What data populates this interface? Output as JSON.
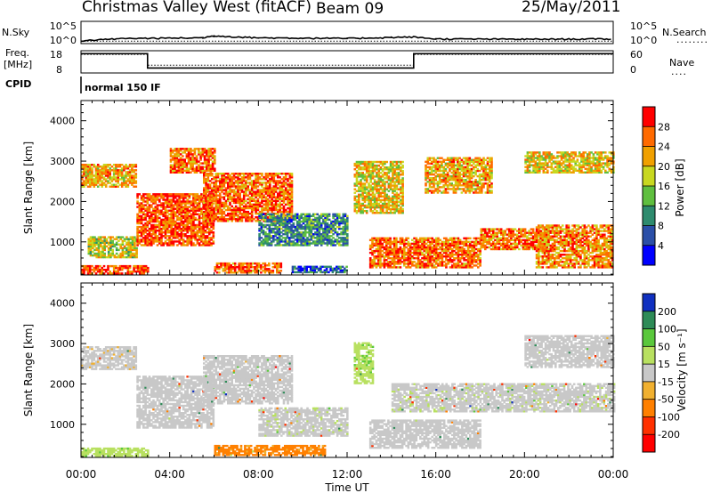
{
  "header": {
    "station": "Christmas Valley West (fitACF)",
    "beam": "Beam 09",
    "date": "25/May/2011"
  },
  "strips": {
    "noise": {
      "left_label": "N.Sky",
      "left_ticks": [
        "10^5",
        "10^0"
      ],
      "right_ticks": [
        "10^5",
        "10^0"
      ],
      "right_label": "N.Search",
      "right_legend": "........"
    },
    "freq": {
      "left_label_1": "Freq.",
      "left_label_2": "[MHz]",
      "left_ticks": [
        "18",
        "8"
      ],
      "right_ticks": [
        "60",
        "0"
      ],
      "right_label": "Nave",
      "right_legend": "...."
    },
    "cpid": {
      "label": "CPID",
      "value": "normal 150 IF"
    }
  },
  "axes": {
    "ylabel": "Slant Range [km]",
    "xlabel": "Time UT",
    "x_ticks": [
      "00:00",
      "04:00",
      "08:00",
      "12:00",
      "16:00",
      "20:00",
      "00:00"
    ],
    "y_ticks": [
      "1000",
      "2000",
      "3000",
      "4000"
    ]
  },
  "colorbars": {
    "power": {
      "label": "Power [dB]",
      "ticks": [
        "4",
        "8",
        "12",
        "16",
        "20",
        "24",
        "28"
      ],
      "colors": [
        "#0000ff",
        "#2b4fa8",
        "#2e8b6e",
        "#5fbf3f",
        "#c8d820",
        "#f0a000",
        "#ff6a00",
        "#ff0000"
      ]
    },
    "velocity": {
      "label": "Velocity [m s⁻¹]",
      "ticks": [
        "200",
        "100",
        "50",
        "15",
        "-15",
        "-50",
        "-100",
        "-200"
      ],
      "colors": [
        "#1030c0",
        "#2e8b57",
        "#5ac83c",
        "#b8e060",
        "#c8c8c8",
        "#f0b030",
        "#ff8000",
        "#ff3000",
        "#ff0000"
      ]
    }
  },
  "chart_data": [
    {
      "type": "heatmap",
      "title": "",
      "quantity": "Power",
      "xlabel": "Time UT",
      "ylabel": "Slant Range [km]",
      "xlim": [
        0,
        24
      ],
      "ylim": [
        180,
        4500
      ],
      "colorbar_range": [
        0,
        32
      ],
      "units": "dB",
      "echo_regions": [
        {
          "t0": 0.0,
          "t1": 2.5,
          "r0": 2350,
          "r1": 2900,
          "value": 22
        },
        {
          "t0": 0.0,
          "t1": 3.0,
          "r0": 200,
          "r1": 420,
          "value": 28
        },
        {
          "t0": 0.3,
          "t1": 2.5,
          "r0": 600,
          "r1": 1100,
          "value": 18
        },
        {
          "t0": 2.5,
          "t1": 6.0,
          "r0": 900,
          "r1": 2200,
          "value": 27
        },
        {
          "t0": 4.0,
          "t1": 6.0,
          "r0": 2700,
          "r1": 3300,
          "value": 26
        },
        {
          "t0": 5.5,
          "t1": 9.5,
          "r0": 1500,
          "r1": 2700,
          "value": 26
        },
        {
          "t0": 6.0,
          "t1": 9.0,
          "r0": 220,
          "r1": 480,
          "value": 26
        },
        {
          "t0": 8.0,
          "t1": 12.0,
          "r0": 900,
          "r1": 1700,
          "value": 10
        },
        {
          "t0": 9.5,
          "t1": 12.0,
          "r0": 230,
          "r1": 400,
          "value": 6
        },
        {
          "t0": 12.3,
          "t1": 14.5,
          "r0": 1700,
          "r1": 3000,
          "value": 20
        },
        {
          "t0": 13.0,
          "t1": 18.0,
          "r0": 350,
          "r1": 1100,
          "value": 26
        },
        {
          "t0": 15.5,
          "t1": 18.5,
          "r0": 2200,
          "r1": 3100,
          "value": 22
        },
        {
          "t0": 18.0,
          "t1": 21.0,
          "r0": 800,
          "r1": 1300,
          "value": 25
        },
        {
          "t0": 20.5,
          "t1": 24.0,
          "r0": 350,
          "r1": 1400,
          "value": 24
        },
        {
          "t0": 20.0,
          "t1": 24.0,
          "r0": 2700,
          "r1": 3200,
          "value": 20
        }
      ]
    },
    {
      "type": "heatmap",
      "title": "",
      "quantity": "Velocity",
      "xlabel": "Time UT",
      "ylabel": "Slant Range [km]",
      "xlim": [
        0,
        24
      ],
      "ylim": [
        180,
        4500
      ],
      "colorbar_range": [
        -250,
        250
      ],
      "units": "m s-1",
      "echo_regions": [
        {
          "t0": 0.0,
          "t1": 2.5,
          "r0": 2350,
          "r1": 2900,
          "value": -5
        },
        {
          "t0": 0.0,
          "t1": 3.0,
          "r0": 200,
          "r1": 420,
          "value": 40
        },
        {
          "t0": 2.5,
          "t1": 6.0,
          "r0": 900,
          "r1": 2200,
          "value": 0
        },
        {
          "t0": 5.5,
          "t1": 9.5,
          "r0": 1500,
          "r1": 2700,
          "value": 0
        },
        {
          "t0": 6.0,
          "t1": 11.0,
          "r0": 220,
          "r1": 480,
          "value": -60
        },
        {
          "t0": 8.0,
          "t1": 12.0,
          "r0": 700,
          "r1": 1400,
          "value": 5
        },
        {
          "t0": 12.3,
          "t1": 13.2,
          "r0": 2000,
          "r1": 3000,
          "value": 40
        },
        {
          "t0": 13.0,
          "t1": 18.0,
          "r0": 400,
          "r1": 1100,
          "value": 0
        },
        {
          "t0": 14.0,
          "t1": 24.0,
          "r0": 1300,
          "r1": 2000,
          "value": 5
        },
        {
          "t0": 20.0,
          "t1": 24.0,
          "r0": 2400,
          "r1": 3200,
          "value": 0
        }
      ]
    },
    {
      "type": "line",
      "title": "",
      "quantity": "N.Sky / N.Search noise",
      "ylim": [
        1,
        100000
      ],
      "scale": "log",
      "series": [
        {
          "name": "N.Sky",
          "x": [
            0,
            2,
            4,
            5.5,
            6,
            8,
            10,
            12,
            14,
            15,
            16,
            20,
            24
          ],
          "y": [
            2,
            8,
            10,
            12,
            40,
            12,
            10,
            8,
            15,
            20,
            6,
            5,
            6
          ]
        },
        {
          "name": "N.Search",
          "x": [
            0,
            24
          ],
          "y": [
            1.5,
            1.5
          ]
        }
      ]
    },
    {
      "type": "line",
      "title": "",
      "quantity": "Freq / Nave",
      "series": [
        {
          "name": "Freq.",
          "x": [
            0,
            3,
            3,
            15,
            15,
            24
          ],
          "y": [
            17,
            17,
            10,
            10,
            17,
            17
          ]
        },
        {
          "name": "Nave",
          "x": [
            0,
            3,
            3,
            15,
            15,
            24
          ],
          "y": [
            52,
            52,
            20,
            20,
            52,
            52
          ]
        }
      ]
    }
  ]
}
